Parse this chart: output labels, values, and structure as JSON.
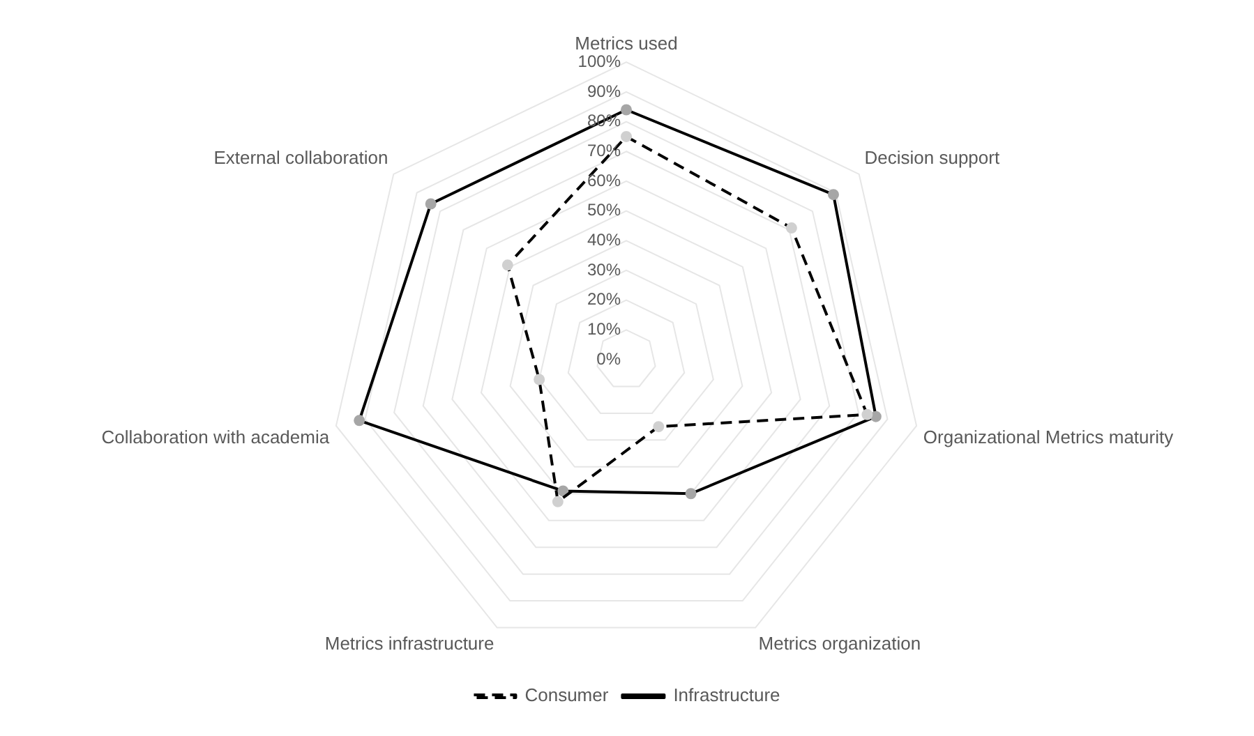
{
  "chart_data": {
    "type": "radar",
    "categories": [
      "Metrics used",
      "Decision support",
      "Organizational Metrics maturity",
      "Metrics organization",
      "Metrics infrastructure",
      "Collaboration with academia",
      "External collaboration"
    ],
    "series": [
      {
        "name": "Consumer",
        "color": "#000000",
        "line_style": "dashed",
        "values": [
          75,
          71,
          83,
          25,
          53,
          30,
          51
        ]
      },
      {
        "name": "Infrastructure",
        "color": "#000000",
        "line_style": "solid",
        "values": [
          84,
          89,
          86,
          50,
          49,
          92,
          84
        ]
      }
    ],
    "ylim": [
      0,
      100
    ],
    "yticks": [
      {
        "value": 0,
        "label": "0%"
      },
      {
        "value": 10,
        "label": "10%"
      },
      {
        "value": 20,
        "label": "20%"
      },
      {
        "value": 30,
        "label": "30%"
      },
      {
        "value": 40,
        "label": "40%"
      },
      {
        "value": 50,
        "label": "50%"
      },
      {
        "value": 60,
        "label": "60%"
      },
      {
        "value": 70,
        "label": "70%"
      },
      {
        "value": 80,
        "label": "80%"
      },
      {
        "value": 90,
        "label": "90%"
      },
      {
        "value": 100,
        "label": "100%"
      }
    ],
    "grid": true,
    "marker": "circle",
    "legend": "bottom"
  }
}
